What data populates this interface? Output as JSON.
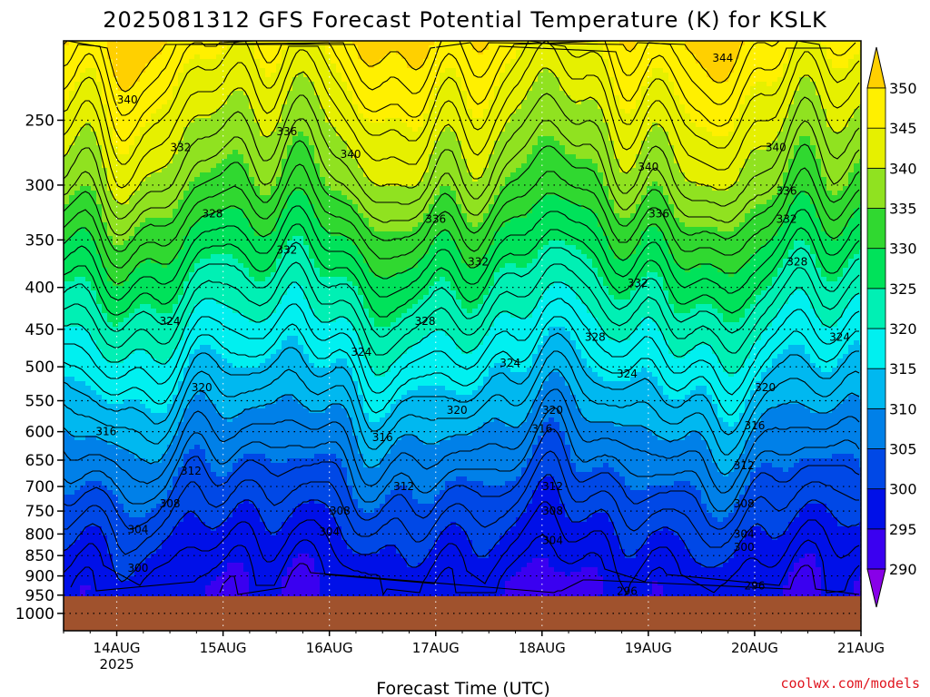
{
  "chart_data": {
    "type": "heatmap",
    "title": "2025081312 GFS Forecast Potential Temperature (K) for KSLK",
    "xlabel": "Forecast Time (UTC)",
    "ylabel": "",
    "x_ticks": [
      "14AUG",
      "15AUG",
      "16AUG",
      "17AUG",
      "18AUG",
      "19AUG",
      "20AUG",
      "21AUG"
    ],
    "x_tick_year": "2025",
    "x_range_days": [
      13.5,
      21.0
    ],
    "y_ticks": [
      250,
      300,
      350,
      400,
      450,
      500,
      550,
      600,
      650,
      700,
      750,
      800,
      850,
      900,
      950,
      1000
    ],
    "y_range_hpa": [
      200,
      1050
    ],
    "y_scale": "log",
    "colorbar": {
      "levels": [
        290,
        295,
        300,
        305,
        310,
        315,
        320,
        325,
        330,
        335,
        340,
        345,
        350
      ],
      "colors": [
        "#8800e8",
        "#3a00f0",
        "#0010e8",
        "#0048e6",
        "#0080e8",
        "#00b8f0",
        "#00f0f0",
        "#00f0b4",
        "#00e25a",
        "#30d830",
        "#90e220",
        "#e6f000",
        "#fff000",
        "#ffd000"
      ],
      "extend": "both"
    },
    "contour_interval_K": 2,
    "ground_color": "#a0522d",
    "contour_labels": [
      {
        "day": 14.1,
        "p": 236,
        "v": "340"
      },
      {
        "day": 13.5,
        "p": 305,
        "v": "336"
      },
      {
        "day": 13.2,
        "p": 375,
        "v": "332"
      },
      {
        "day": 14.6,
        "p": 270,
        "v": "332"
      },
      {
        "day": 15.6,
        "p": 258,
        "v": "336"
      },
      {
        "day": 14.9,
        "p": 325,
        "v": "328"
      },
      {
        "day": 14.5,
        "p": 440,
        "v": "324"
      },
      {
        "day": 15.6,
        "p": 360,
        "v": "332"
      },
      {
        "day": 16.2,
        "p": 275,
        "v": "340"
      },
      {
        "day": 17.0,
        "p": 330,
        "v": "336"
      },
      {
        "day": 17.4,
        "p": 372,
        "v": "332"
      },
      {
        "day": 16.9,
        "p": 440,
        "v": "328"
      },
      {
        "day": 16.3,
        "p": 480,
        "v": "324"
      },
      {
        "day": 14.8,
        "p": 530,
        "v": "320"
      },
      {
        "day": 13.9,
        "p": 600,
        "v": "316"
      },
      {
        "day": 14.7,
        "p": 670,
        "v": "312"
      },
      {
        "day": 14.5,
        "p": 735,
        "v": "308"
      },
      {
        "day": 14.2,
        "p": 790,
        "v": "304"
      },
      {
        "day": 14.2,
        "p": 880,
        "v": "300"
      },
      {
        "day": 16.0,
        "p": 795,
        "v": "304"
      },
      {
        "day": 16.1,
        "p": 750,
        "v": "308"
      },
      {
        "day": 16.7,
        "p": 700,
        "v": "312"
      },
      {
        "day": 16.5,
        "p": 610,
        "v": "316"
      },
      {
        "day": 17.2,
        "p": 565,
        "v": "320"
      },
      {
        "day": 17.7,
        "p": 495,
        "v": "324"
      },
      {
        "day": 18.5,
        "p": 460,
        "v": "328"
      },
      {
        "day": 18.9,
        "p": 395,
        "v": "332"
      },
      {
        "day": 19.1,
        "p": 325,
        "v": "336"
      },
      {
        "day": 19.0,
        "p": 285,
        "v": "340"
      },
      {
        "day": 18.8,
        "p": 510,
        "v": "324"
      },
      {
        "day": 18.0,
        "p": 595,
        "v": "316"
      },
      {
        "day": 18.1,
        "p": 565,
        "v": "320"
      },
      {
        "day": 18.1,
        "p": 700,
        "v": "312"
      },
      {
        "day": 18.1,
        "p": 750,
        "v": "308"
      },
      {
        "day": 18.1,
        "p": 815,
        "v": "304"
      },
      {
        "day": 18.8,
        "p": 940,
        "v": "296"
      },
      {
        "day": 20.1,
        "p": 530,
        "v": "320"
      },
      {
        "day": 20.0,
        "p": 590,
        "v": "316"
      },
      {
        "day": 19.9,
        "p": 660,
        "v": "312"
      },
      {
        "day": 19.9,
        "p": 735,
        "v": "308"
      },
      {
        "day": 19.9,
        "p": 800,
        "v": "304"
      },
      {
        "day": 19.9,
        "p": 830,
        "v": "300"
      },
      {
        "day": 20.0,
        "p": 925,
        "v": "296"
      },
      {
        "day": 20.2,
        "p": 270,
        "v": "340"
      },
      {
        "day": 20.3,
        "p": 305,
        "v": "336"
      },
      {
        "day": 20.3,
        "p": 330,
        "v": "332"
      },
      {
        "day": 20.4,
        "p": 372,
        "v": "328"
      },
      {
        "day": 20.8,
        "p": 460,
        "v": "324"
      },
      {
        "day": 19.7,
        "p": 210,
        "v": "344"
      }
    ]
  },
  "credit": "coolwx.com/models"
}
